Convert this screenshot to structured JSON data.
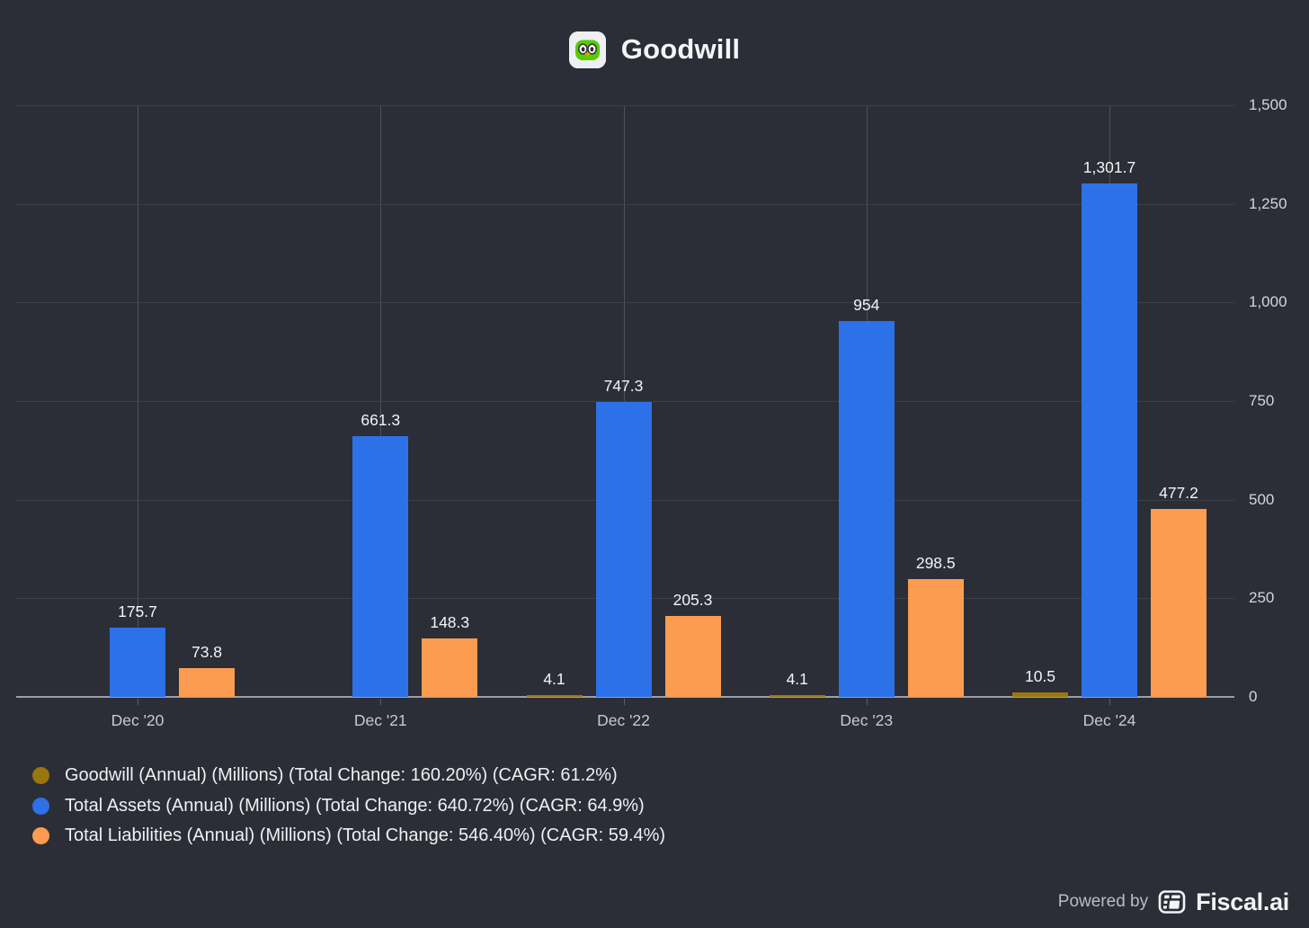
{
  "header": {
    "title": "Goodwill",
    "icon": "duolingo-owl-icon"
  },
  "chart_data": {
    "type": "bar",
    "title": "Goodwill",
    "categories": [
      "Dec '20",
      "Dec '21",
      "Dec '22",
      "Dec '23",
      "Dec '24"
    ],
    "series": [
      {
        "key": "goodwill",
        "name": "Goodwill (Annual) (Millions) (Total Change: 160.20%) (CAGR: 61.2%)",
        "color": "#9a760e",
        "values": [
          null,
          null,
          4.1,
          4.1,
          10.5
        ],
        "labels": [
          "",
          "",
          "4.1",
          "4.1",
          "10.5"
        ]
      },
      {
        "key": "total-assets",
        "name": "Total Assets (Annual) (Millions) (Total Change: 640.72%) (CAGR: 64.9%)",
        "color": "#2d71e8",
        "values": [
          175.7,
          661.3,
          747.3,
          954,
          1301.7
        ],
        "labels": [
          "175.7",
          "661.3",
          "747.3",
          "954",
          "1,301.7"
        ]
      },
      {
        "key": "total-liabilities",
        "name": "Total Liabilities (Annual) (Millions) (Total Change: 546.40%) (CAGR: 59.4%)",
        "color": "#fb9c50",
        "values": [
          73.8,
          148.3,
          205.3,
          298.5,
          477.2
        ],
        "labels": [
          "73.8",
          "148.3",
          "205.3",
          "298.5",
          "477.2"
        ]
      }
    ],
    "ylim": [
      0,
      1500
    ],
    "yticks": [
      0,
      250,
      500,
      750,
      1000,
      1250,
      1500
    ],
    "ytick_labels": [
      "0",
      "250",
      "500",
      "750",
      "1,000",
      "1,250",
      "1,500"
    ],
    "xlabel": "",
    "ylabel": "",
    "grid": true,
    "legend_position": "bottom-left"
  },
  "footer": {
    "powered_by": "Powered by",
    "brand": "Fiscal.ai"
  }
}
